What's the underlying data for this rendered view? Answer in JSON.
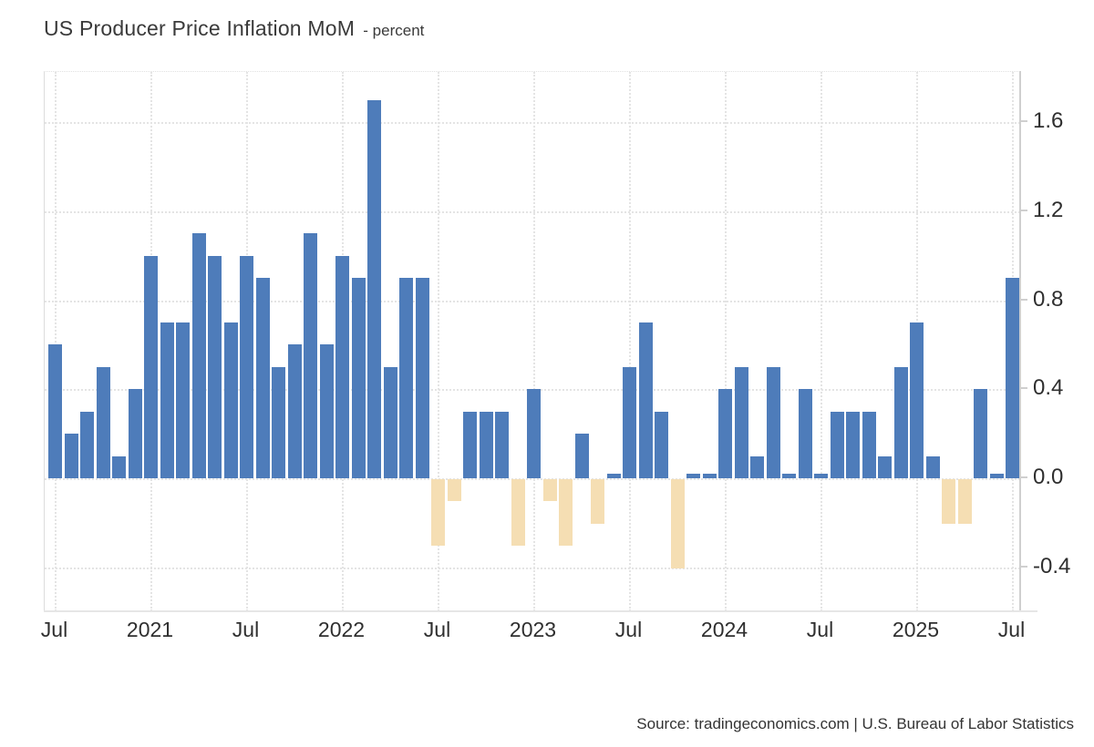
{
  "header": {
    "title": "US Producer Price Inflation MoM",
    "subtitle": "- percent"
  },
  "footer": {
    "source": "Source: tradingeconomics.com | U.S. Bureau of Labor Statistics"
  },
  "chart_data": {
    "type": "bar",
    "title": "US Producer Price Inflation MoM",
    "subtitle": "percent",
    "ylabel": "percent",
    "x": [
      "2020-07",
      "2020-08",
      "2020-09",
      "2020-10",
      "2020-11",
      "2020-12",
      "2021-01",
      "2021-02",
      "2021-03",
      "2021-04",
      "2021-05",
      "2021-06",
      "2021-07",
      "2021-08",
      "2021-09",
      "2021-10",
      "2021-11",
      "2021-12",
      "2022-01",
      "2022-02",
      "2022-03",
      "2022-04",
      "2022-05",
      "2022-06",
      "2022-07",
      "2022-08",
      "2022-09",
      "2022-10",
      "2022-11",
      "2022-12",
      "2023-01",
      "2023-02",
      "2023-03",
      "2023-04",
      "2023-05",
      "2023-06",
      "2023-07",
      "2023-08",
      "2023-09",
      "2023-10",
      "2023-11",
      "2023-12",
      "2024-01",
      "2024-02",
      "2024-03",
      "2024-04",
      "2024-05",
      "2024-06",
      "2024-07",
      "2024-08",
      "2024-09",
      "2024-10",
      "2024-11",
      "2024-12",
      "2025-01",
      "2025-02",
      "2025-03",
      "2025-04",
      "2025-05",
      "2025-06",
      "2025-07"
    ],
    "values": [
      0.6,
      0.2,
      0.3,
      0.5,
      0.1,
      0.4,
      1.0,
      0.7,
      0.7,
      1.1,
      1.0,
      0.7,
      1.0,
      0.9,
      0.5,
      0.6,
      1.1,
      0.6,
      1.0,
      0.9,
      1.7,
      0.5,
      0.9,
      0.9,
      -0.3,
      -0.1,
      0.3,
      0.3,
      0.3,
      -0.3,
      0.4,
      -0.1,
      -0.3,
      0.2,
      -0.2,
      0.0,
      0.5,
      0.7,
      0.3,
      -0.4,
      0.0,
      0.0,
      0.4,
      0.5,
      0.1,
      0.5,
      0.0,
      0.4,
      0.0,
      0.3,
      0.3,
      0.3,
      0.1,
      0.5,
      0.7,
      0.1,
      -0.2,
      -0.2,
      0.4,
      0.0,
      0.9
    ],
    "xticks": [
      {
        "label": "Jul",
        "month_index": 0
      },
      {
        "label": "2021",
        "month_index": 6
      },
      {
        "label": "Jul",
        "month_index": 12
      },
      {
        "label": "2022",
        "month_index": 18
      },
      {
        "label": "Jul",
        "month_index": 24
      },
      {
        "label": "2023",
        "month_index": 30
      },
      {
        "label": "Jul",
        "month_index": 36
      },
      {
        "label": "2024",
        "month_index": 42
      },
      {
        "label": "Jul",
        "month_index": 48
      },
      {
        "label": "2025",
        "month_index": 54
      },
      {
        "label": "Jul",
        "month_index": 60
      }
    ],
    "yticks": [
      1.6,
      1.2,
      0.8,
      0.4,
      0.0,
      -0.4
    ],
    "ylim": [
      -0.6,
      1.83
    ],
    "grid": "dotted",
    "legend": "none",
    "colors": {
      "positive": "#4e7cba",
      "negative": "#f5deb3"
    },
    "source": "Source: tradingeconomics.com | U.S. Bureau of Labor Statistics"
  }
}
